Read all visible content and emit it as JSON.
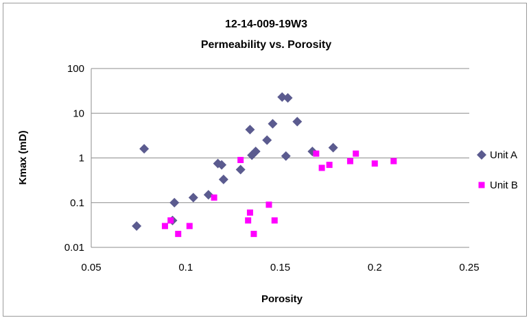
{
  "chart_data": {
    "type": "scatter",
    "title": "12-14-009-19W3",
    "subtitle": "Permeability vs. Porosity",
    "xlabel": "Porosity",
    "ylabel": "Kmax (mD)",
    "xlim": [
      0.05,
      0.25
    ],
    "ylim": [
      0.01,
      100
    ],
    "yscale": "log",
    "xticks": [
      "0.05",
      "0.1",
      "0.15",
      "0.2",
      "0.25"
    ],
    "yticks": [
      "0.01",
      "0.1",
      "1",
      "10",
      "100"
    ],
    "grid": "horizontal",
    "legend": "right",
    "series": [
      {
        "name": "Unit A",
        "marker": "diamond",
        "color": "#5b5b8f",
        "points": [
          [
            0.074,
            0.03
          ],
          [
            0.078,
            1.6
          ],
          [
            0.093,
            0.04
          ],
          [
            0.094,
            0.1
          ],
          [
            0.104,
            0.13
          ],
          [
            0.112,
            0.15
          ],
          [
            0.117,
            0.75
          ],
          [
            0.119,
            0.7
          ],
          [
            0.12,
            0.33
          ],
          [
            0.129,
            0.55
          ],
          [
            0.134,
            4.3
          ],
          [
            0.135,
            1.15
          ],
          [
            0.137,
            1.4
          ],
          [
            0.143,
            2.5
          ],
          [
            0.146,
            5.8
          ],
          [
            0.151,
            23
          ],
          [
            0.153,
            1.1
          ],
          [
            0.154,
            22
          ],
          [
            0.159,
            6.5
          ],
          [
            0.167,
            1.4
          ],
          [
            0.178,
            1.7
          ]
        ]
      },
      {
        "name": "Unit B",
        "marker": "square",
        "color": "#ff00ff",
        "points": [
          [
            0.089,
            0.03
          ],
          [
            0.092,
            0.04
          ],
          [
            0.096,
            0.02
          ],
          [
            0.102,
            0.03
          ],
          [
            0.115,
            0.13
          ],
          [
            0.129,
            0.9
          ],
          [
            0.133,
            0.04
          ],
          [
            0.134,
            0.06
          ],
          [
            0.136,
            0.02
          ],
          [
            0.144,
            0.09
          ],
          [
            0.147,
            0.04
          ],
          [
            0.169,
            1.25
          ],
          [
            0.172,
            0.6
          ],
          [
            0.176,
            0.7
          ],
          [
            0.187,
            0.85
          ],
          [
            0.19,
            1.25
          ],
          [
            0.2,
            0.75
          ],
          [
            0.21,
            0.85
          ]
        ]
      }
    ]
  }
}
